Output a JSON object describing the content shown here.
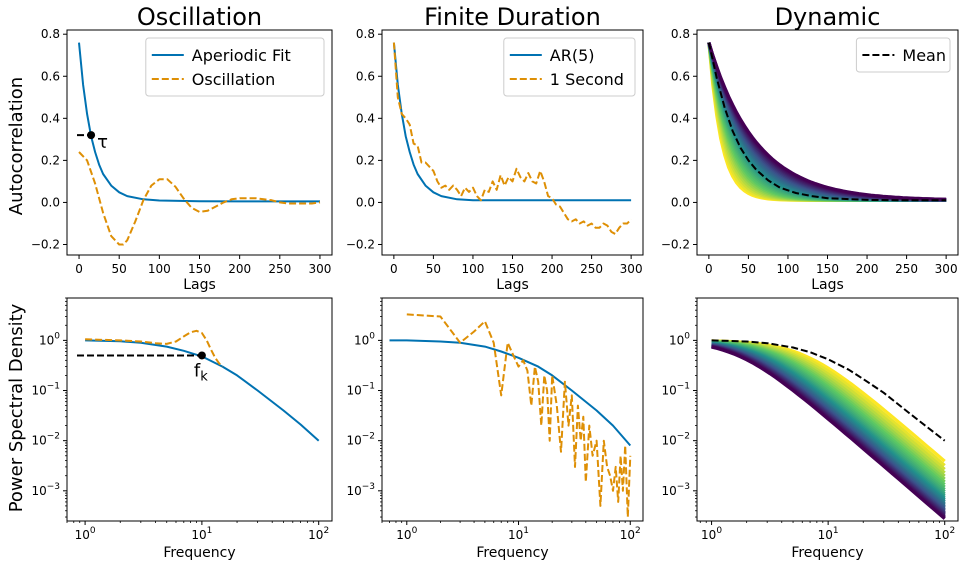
{
  "figure": {
    "ylabel_top": "Autocorrelation",
    "ylabel_bottom": "Power Spectral Density",
    "colors": {
      "blue": "#0072b2",
      "orange": "#de8f05",
      "black": "#000000"
    }
  },
  "chart_data": [
    {
      "id": "p1",
      "type": "line",
      "title": "Oscillation",
      "xlabel": "Lags",
      "xlim": [
        -15,
        315
      ],
      "ylim": [
        -0.25,
        0.82
      ],
      "xticks": [
        0,
        50,
        100,
        150,
        200,
        250,
        300
      ],
      "yticks": [
        -0.2,
        0.0,
        0.2,
        0.4,
        0.6,
        0.8
      ],
      "ytick_labels": [
        "−0.2",
        "0.0",
        "0.2",
        "0.4",
        "0.6",
        "0.8"
      ],
      "legend": {
        "placement": "top-right",
        "entries": [
          "Aperiodic Fit",
          "Oscillation"
        ]
      },
      "series": [
        {
          "name": "Aperiodic Fit",
          "style": "solid",
          "color": "#0072b2",
          "x": [
            0,
            5,
            10,
            15,
            20,
            25,
            30,
            40,
            50,
            60,
            80,
            100,
            150,
            200,
            300
          ],
          "y": [
            0.76,
            0.56,
            0.42,
            0.315,
            0.24,
            0.18,
            0.135,
            0.08,
            0.048,
            0.03,
            0.015,
            0.009,
            0.006,
            0.005,
            0.005
          ]
        },
        {
          "name": "Oscillation",
          "style": "dashed",
          "color": "#de8f05",
          "x": [
            0,
            10,
            20,
            30,
            40,
            50,
            55,
            60,
            70,
            80,
            90,
            100,
            110,
            120,
            130,
            140,
            150,
            160,
            170,
            180,
            190,
            200,
            210,
            220,
            230,
            240,
            250,
            260,
            270,
            280,
            290,
            300
          ],
          "y": [
            0.24,
            0.2,
            0.09,
            -0.05,
            -0.16,
            -0.2,
            -0.2,
            -0.18,
            -0.09,
            0.01,
            0.08,
            0.11,
            0.11,
            0.075,
            0.02,
            -0.025,
            -0.045,
            -0.04,
            -0.02,
            0.0,
            0.015,
            0.02,
            0.02,
            0.02,
            0.015,
            0.01,
            0.0,
            -0.005,
            -0.005,
            -0.005,
            -0.005,
            0.0
          ]
        }
      ],
      "annotation": {
        "label": "τ",
        "x": 15,
        "y": 0.32
      }
    },
    {
      "id": "p2",
      "type": "line",
      "title": "Finite Duration",
      "xlabel": "Lags",
      "xlim": [
        -15,
        315
      ],
      "ylim": [
        -0.25,
        0.82
      ],
      "xticks": [
        0,
        50,
        100,
        150,
        200,
        250,
        300
      ],
      "yticks": [
        -0.2,
        0.0,
        0.2,
        0.4,
        0.6,
        0.8
      ],
      "ytick_labels": [
        "−0.2",
        "0.0",
        "0.2",
        "0.4",
        "0.6",
        "0.8"
      ],
      "legend": {
        "placement": "top-right",
        "entries": [
          "AR(5)",
          "1 Second"
        ]
      },
      "series": [
        {
          "name": "AR(5)",
          "style": "solid",
          "color": "#0072b2",
          "x": [
            0,
            5,
            10,
            15,
            20,
            25,
            30,
            40,
            50,
            60,
            80,
            100,
            150,
            200,
            300
          ],
          "y": [
            0.76,
            0.56,
            0.42,
            0.315,
            0.24,
            0.18,
            0.135,
            0.08,
            0.048,
            0.03,
            0.015,
            0.01,
            0.01,
            0.01,
            0.01
          ]
        },
        {
          "name": "1 Second",
          "style": "dashed",
          "color": "#de8f05",
          "x": [
            0,
            5,
            10,
            15,
            20,
            25,
            30,
            35,
            40,
            50,
            55,
            60,
            65,
            70,
            75,
            80,
            85,
            90,
            95,
            100,
            105,
            110,
            115,
            120,
            125,
            130,
            135,
            140,
            145,
            150,
            155,
            160,
            165,
            170,
            175,
            180,
            185,
            190,
            195,
            200,
            205,
            210,
            215,
            220,
            225,
            230,
            235,
            240,
            245,
            250,
            255,
            260,
            265,
            270,
            275,
            280,
            285,
            290,
            295,
            300
          ],
          "y": [
            0.76,
            0.5,
            0.42,
            0.4,
            0.37,
            0.28,
            0.27,
            0.19,
            0.19,
            0.15,
            0.1,
            0.07,
            0.08,
            0.06,
            0.08,
            0.06,
            0.03,
            0.07,
            0.05,
            0.07,
            0.03,
            0.01,
            0.06,
            0.05,
            0.1,
            0.06,
            0.13,
            0.08,
            0.12,
            0.1,
            0.16,
            0.12,
            0.1,
            0.14,
            0.1,
            0.09,
            0.15,
            0.1,
            0.03,
            0.02,
            -0.01,
            -0.02,
            -0.05,
            -0.08,
            -0.09,
            -0.08,
            -0.1,
            -0.09,
            -0.11,
            -0.1,
            -0.12,
            -0.12,
            -0.1,
            -0.11,
            -0.14,
            -0.15,
            -0.12,
            -0.1,
            -0.1,
            -0.08
          ]
        }
      ]
    },
    {
      "id": "p3",
      "type": "line",
      "title": "Dynamic",
      "xlabel": "Lags",
      "xlim": [
        -15,
        315
      ],
      "ylim": [
        -0.25,
        0.82
      ],
      "xticks": [
        0,
        50,
        100,
        150,
        200,
        250,
        300
      ],
      "yticks": [
        -0.2,
        0.0,
        0.2,
        0.4,
        0.6,
        0.8
      ],
      "ytick_labels": [
        "−0.2",
        "0.0",
        "0.2",
        "0.4",
        "0.6",
        "0.8"
      ],
      "legend": {
        "placement": "top-right",
        "entries": [
          "Mean"
        ]
      },
      "band": {
        "colormap": "viridis",
        "start": 0.76,
        "tau_min": 16,
        "tau_max": 60,
        "floor": 0.01,
        "count": 28
      },
      "series": [
        {
          "name": "Mean",
          "style": "dashed",
          "color": "#000000",
          "x": [
            0,
            10,
            20,
            30,
            40,
            50,
            60,
            75,
            90,
            110,
            130,
            150,
            200,
            250,
            300
          ],
          "y": [
            0.76,
            0.59,
            0.45,
            0.34,
            0.26,
            0.2,
            0.155,
            0.105,
            0.07,
            0.045,
            0.03,
            0.02,
            0.012,
            0.01,
            0.01
          ]
        }
      ]
    },
    {
      "id": "p4",
      "type": "line",
      "xlabel": "Frequency",
      "xscale": "log",
      "yscale": "log",
      "xlim": [
        0.7,
        130
      ],
      "ylim": [
        0.00025,
        7
      ],
      "xticks": [
        1,
        10,
        100
      ],
      "xtick_labels": [
        "10^0",
        "10^1",
        "10^2"
      ],
      "yticks": [
        0.001,
        0.01,
        0.1,
        1
      ],
      "ytick_labels": [
        "10^-3",
        "10^-2",
        "10^-1",
        "10^0"
      ],
      "series": [
        {
          "name": "Aperiodic Fit",
          "style": "solid",
          "color": "#0072b2",
          "x": [
            1,
            2,
            3,
            5,
            7,
            10,
            15,
            20,
            30,
            50,
            70,
            100
          ],
          "y": [
            1.0,
            0.96,
            0.9,
            0.75,
            0.62,
            0.48,
            0.3,
            0.2,
            0.1,
            0.04,
            0.021,
            0.01
          ]
        },
        {
          "name": "Oscillation",
          "style": "dashed",
          "color": "#de8f05",
          "x": [
            1,
            2,
            3,
            4,
            5,
            6,
            7,
            8,
            9,
            10,
            11,
            12,
            13,
            14,
            15
          ],
          "y": [
            1.05,
            1.0,
            0.95,
            0.88,
            0.85,
            0.95,
            1.2,
            1.45,
            1.55,
            1.4,
            1.0,
            0.65,
            0.45,
            0.35,
            0.3
          ]
        }
      ],
      "annotation": {
        "label": "f",
        "subscript": "k",
        "x": 10,
        "y": 0.5
      }
    },
    {
      "id": "p5",
      "type": "line",
      "xlabel": "Frequency",
      "xscale": "log",
      "yscale": "log",
      "xlim": [
        0.6,
        130
      ],
      "ylim": [
        0.00025,
        7
      ],
      "xticks": [
        1,
        10,
        100
      ],
      "xtick_labels": [
        "10^0",
        "10^1",
        "10^2"
      ],
      "yticks": [
        0.001,
        0.01,
        0.1,
        1
      ],
      "ytick_labels": [
        "10^-3",
        "10^-2",
        "10^-1",
        "10^0"
      ],
      "series": [
        {
          "name": "AR(5)",
          "style": "solid",
          "color": "#0072b2",
          "x": [
            0.7,
            1,
            2,
            3,
            5,
            7,
            10,
            15,
            20,
            30,
            50,
            70,
            100
          ],
          "y": [
            1.0,
            1.0,
            0.95,
            0.9,
            0.75,
            0.6,
            0.45,
            0.3,
            0.2,
            0.1,
            0.04,
            0.02,
            0.008
          ]
        },
        {
          "name": "1 Second",
          "style": "dashed",
          "color": "#de8f05",
          "x": [
            1,
            2,
            3,
            4,
            5,
            6,
            7,
            8,
            9,
            10,
            11,
            12,
            13,
            14,
            15,
            16,
            17,
            18,
            19,
            20,
            22,
            24,
            26,
            28,
            30,
            32,
            34,
            36,
            38,
            40,
            43,
            46,
            50,
            54,
            58,
            62,
            66,
            70,
            74,
            78,
            82,
            86,
            90,
            95,
            100
          ],
          "y": [
            3.3,
            3.0,
            0.9,
            1.5,
            2.4,
            0.9,
            0.08,
            0.9,
            0.5,
            0.3,
            0.4,
            0.25,
            0.05,
            0.3,
            0.15,
            0.02,
            0.2,
            0.1,
            0.01,
            0.2,
            0.05,
            0.006,
            0.15,
            0.02,
            0.08,
            0.003,
            0.05,
            0.01,
            0.03,
            0.0015,
            0.02,
            0.005,
            0.01,
            0.0005,
            0.01,
            0.003,
            0.002,
            0.001,
            0.003,
            0.0006,
            0.005,
            0.001,
            0.008,
            0.0003,
            0.005
          ]
        }
      ]
    },
    {
      "id": "p6",
      "type": "line",
      "xlabel": "Frequency",
      "xscale": "log",
      "yscale": "log",
      "xlim": [
        0.75,
        130
      ],
      "ylim": [
        0.00025,
        7
      ],
      "xticks": [
        1,
        10,
        100
      ],
      "xtick_labels": [
        "10^0",
        "10^1",
        "10^2"
      ],
      "yticks": [
        0.001,
        0.01,
        0.1,
        1
      ],
      "ytick_labels": [
        "10^-3",
        "10^-2",
        "10^-1",
        "10^0"
      ],
      "band": {
        "colormap": "viridis",
        "start": 1.0,
        "tau_min": 16,
        "tau_max": 60,
        "count": 28
      },
      "series": [
        {
          "name": "Mean",
          "style": "dashed",
          "color": "#000000",
          "x": [
            1,
            2,
            3,
            5,
            7,
            10,
            15,
            20,
            30,
            50,
            70,
            100
          ],
          "y": [
            1.0,
            0.95,
            0.88,
            0.72,
            0.58,
            0.42,
            0.26,
            0.17,
            0.09,
            0.035,
            0.019,
            0.01
          ]
        }
      ]
    }
  ]
}
